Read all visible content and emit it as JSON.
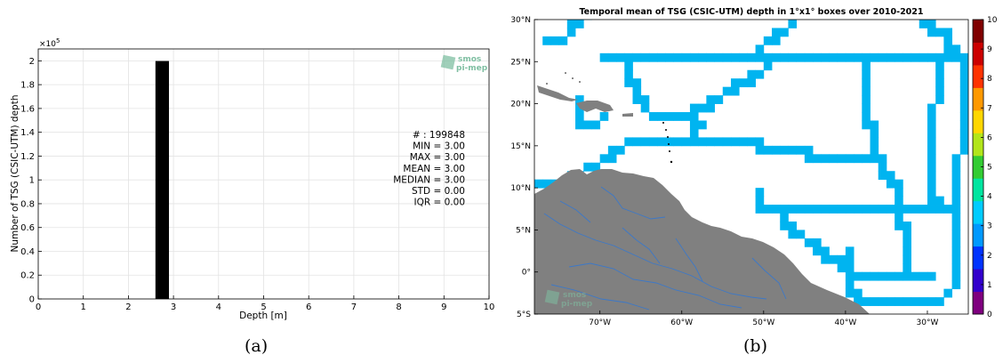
{
  "panels": {
    "a": {
      "caption": "(a)",
      "chart_data": {
        "type": "bar",
        "x": [
          2.75
        ],
        "values": [
          199848
        ],
        "bin_width": 0.3,
        "xlabel": "Depth [m]",
        "ylabel": "Number of TSG (CSIC-UTM) depth",
        "xlim": [
          0,
          10
        ],
        "ylim": [
          0,
          210000
        ],
        "xticks": [
          "0",
          "1",
          "2",
          "3",
          "4",
          "5",
          "6",
          "7",
          "8",
          "9",
          "10"
        ],
        "yticks": [
          "0",
          "0.2",
          "0.4",
          "0.6",
          "0.8",
          "1",
          "1.2",
          "1.4",
          "1.6",
          "1.8",
          "2"
        ],
        "yexp": "×10",
        "yexp_power": "5",
        "grid": true,
        "bar_color": "#000000",
        "stats": [
          "# : 199848",
          "MIN = 3.00",
          "MAX =  3.00",
          "MEAN = 3.00",
          "MEDIAN = 3.00",
          "STD = 0.00",
          "IQR = 0.00"
        ]
      },
      "logo": {
        "line1": "smos",
        "line2": "pi-mep",
        "color": "#7fbfa2"
      }
    },
    "b": {
      "caption": "(b)",
      "chart_data": {
        "type": "heatmap",
        "title": "Temporal mean of TSG (CSIC-UTM) depth in 1°x1° boxes over 2010-2021",
        "xlim": [
          -78,
          -25
        ],
        "ylim": [
          -5,
          30
        ],
        "xtick_values": [
          -70,
          -60,
          -50,
          -40,
          -30
        ],
        "ytick_values": [
          30,
          25,
          20,
          15,
          10,
          5,
          0,
          -5
        ],
        "xticks": [
          "70°W",
          "60°W",
          "50°W",
          "40°W",
          "30°W"
        ],
        "yticks": [
          "30°N",
          "25°N",
          "20°N",
          "15°N",
          "10°N",
          "5°N",
          "0°",
          "5°S"
        ],
        "value_shown": 3,
        "cell_color": "#00b4f0",
        "land_color": "#808080",
        "river_color": "#3c78c8",
        "colorbar": {
          "min": 0,
          "max": 10,
          "ticks": [
            "10",
            "9",
            "8",
            "7",
            "6",
            "5",
            "4",
            "3",
            "2",
            "1",
            "0"
          ],
          "colors": [
            "#7f007f",
            "#3300cc",
            "#0033ff",
            "#0099ff",
            "#00ccff",
            "#00e5a0",
            "#33cc33",
            "#b2e51a",
            "#ffd700",
            "#ff9900",
            "#ff3300",
            "#cc0000",
            "#800000"
          ]
        },
        "tracks": [
          [
            [
              -77,
              27
            ],
            [
              -75,
              27
            ],
            [
              -74,
              28
            ],
            [
              -73,
              29
            ],
            [
              -72,
              30
            ]
          ],
          [
            [
              -70,
              25
            ],
            [
              -60,
              25
            ],
            [
              -50,
              25
            ],
            [
              -40,
              25
            ],
            [
              -29,
              25
            ]
          ],
          [
            [
              -26,
              25
            ],
            [
              -28,
              28
            ],
            [
              -31,
              30
            ]
          ],
          [
            [
              -26,
              24
            ],
            [
              -26,
              14
            ],
            [
              -27,
              4
            ],
            [
              -27,
              -2
            ],
            [
              -29,
              -4
            ],
            [
              -33,
              -4
            ]
          ],
          [
            [
              -47,
              29
            ],
            [
              -50,
              27
            ],
            [
              -52,
              25
            ]
          ],
          [
            [
              -67,
              24
            ],
            [
              -66,
              22
            ],
            [
              -65,
              20
            ],
            [
              -63,
              18
            ],
            [
              -60,
              18
            ],
            [
              -55,
              21
            ],
            [
              -50,
              24
            ]
          ],
          [
            [
              -59,
              17
            ],
            [
              -58,
              15
            ],
            [
              -51,
              15
            ],
            [
              -45,
              14
            ],
            [
              -40,
              13
            ],
            [
              -38,
              13
            ]
          ],
          [
            [
              -78,
              10
            ],
            [
              -74,
              11
            ],
            [
              -70,
              13
            ],
            [
              -67,
              15
            ],
            [
              -60,
              15
            ],
            [
              -58,
              17
            ]
          ],
          [
            [
              -73,
              20
            ],
            [
              -73,
              18
            ],
            [
              -71,
              17
            ],
            [
              -70,
              18
            ]
          ],
          [
            [
              -38,
              24
            ],
            [
              -37,
              17
            ],
            [
              -36,
              13
            ],
            [
              -34,
              10
            ],
            [
              -33,
              5
            ],
            [
              -33,
              0
            ]
          ],
          [
            [
              -51,
              9
            ],
            [
              -51,
              7
            ],
            [
              -45,
              7
            ],
            [
              -28,
              7
            ]
          ],
          [
            [
              -48,
              6
            ],
            [
              -44,
              3
            ],
            [
              -41,
              1
            ],
            [
              -38,
              -1
            ],
            [
              -30,
              -1
            ]
          ],
          [
            [
              -40,
              2
            ],
            [
              -39,
              -3
            ],
            [
              -36,
              -4
            ],
            [
              -29,
              -4
            ]
          ],
          [
            [
              -28,
              25
            ],
            [
              -29,
              20
            ],
            [
              -30,
              15
            ],
            [
              -30,
              10
            ],
            [
              -28,
              7
            ]
          ],
          [
            [
              -72,
              31
            ],
            [
              -74,
              29
            ]
          ]
        ]
      },
      "logo": {
        "line1": "smos",
        "line2": "pi-mep",
        "color": "#7fbfa2"
      }
    }
  }
}
